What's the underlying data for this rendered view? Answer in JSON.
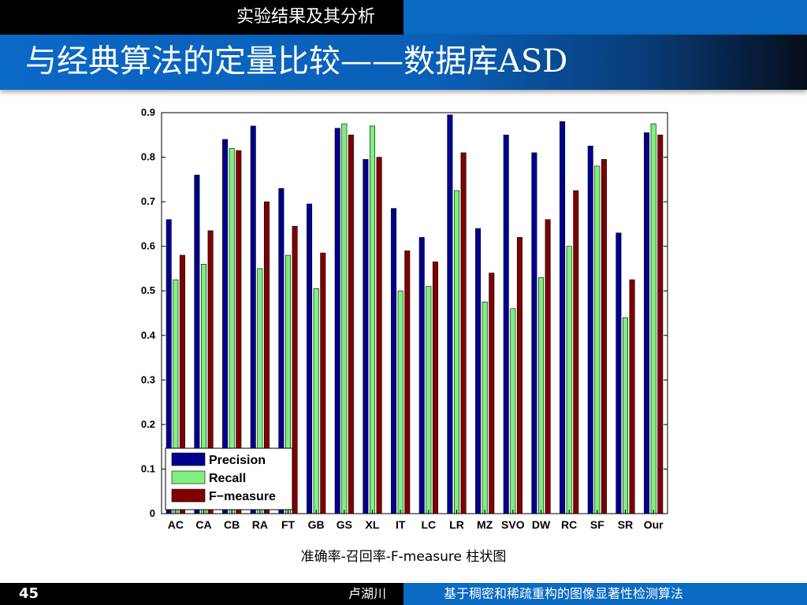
{
  "header": {
    "section": "实验结果及其分析",
    "title": "与经典算法的定量比较——数据库ASD"
  },
  "caption": "准确率-召回率-F-measure 柱状图",
  "footer": {
    "page_number": "45",
    "author": "卢湖川",
    "presentation_title": "基于稠密和稀疏重构的图像显著性检测算法"
  },
  "colors": {
    "precision": "#00008f",
    "recall": "#7df07d",
    "fmeasure": "#800000",
    "accent": "#0b6ac1"
  },
  "chart_data": {
    "type": "bar",
    "title": "",
    "xlabel": "",
    "ylabel": "",
    "ylim": [
      0,
      0.9
    ],
    "yticks": [
      "0",
      "0.1",
      "0.2",
      "0.3",
      "0.4",
      "0.5",
      "0.6",
      "0.7",
      "0.8",
      "0.9"
    ],
    "grid": false,
    "legend_position": "bottom-left",
    "categories": [
      "AC",
      "CA",
      "CB",
      "RA",
      "FT",
      "GB",
      "GS",
      "XL",
      "IT",
      "LC",
      "LR",
      "MZ",
      "SVO",
      "DW",
      "RC",
      "SF",
      "SR",
      "Our"
    ],
    "series": [
      {
        "name": "Precision",
        "values": [
          0.66,
          0.76,
          0.84,
          0.87,
          0.73,
          0.695,
          0.865,
          0.795,
          0.685,
          0.62,
          0.895,
          0.64,
          0.85,
          0.81,
          0.88,
          0.825,
          0.63,
          0.855
        ]
      },
      {
        "name": "Recall",
        "values": [
          0.525,
          0.56,
          0.82,
          0.55,
          0.58,
          0.505,
          0.875,
          0.87,
          0.5,
          0.51,
          0.725,
          0.475,
          0.46,
          0.53,
          0.6,
          0.78,
          0.44,
          0.875
        ]
      },
      {
        "name": "F−measure",
        "values": [
          0.58,
          0.635,
          0.815,
          0.7,
          0.645,
          0.585,
          0.85,
          0.8,
          0.59,
          0.565,
          0.81,
          0.54,
          0.62,
          0.66,
          0.725,
          0.795,
          0.525,
          0.85
        ]
      }
    ]
  }
}
